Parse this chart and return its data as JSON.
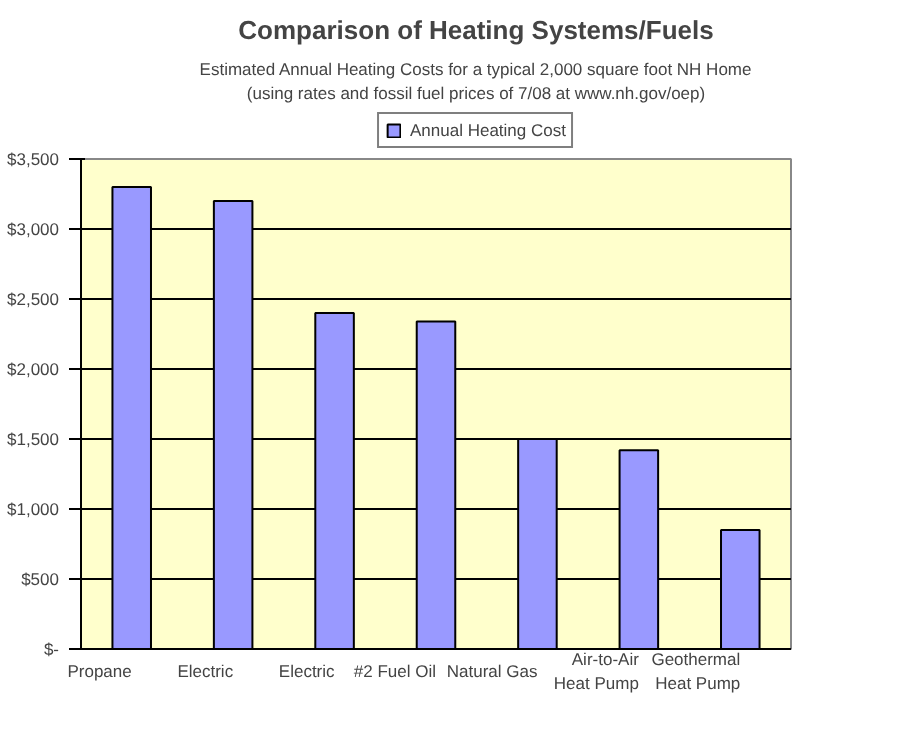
{
  "chart_data": {
    "type": "bar",
    "title": "Comparison of Heating Systems/Fuels",
    "subtitle": "Estimated Annual Heating Costs for a typical 2,000 square foot NH Home",
    "annotations": [
      "(using rates and fossil fuel prices of 7/08 at www.nh.gov/oep)"
    ],
    "categories": [
      "Propane",
      "Electric",
      "Electric",
      "#2 Fuel Oil",
      "Natural Gas",
      "Air-to-Air\nHeat Pump",
      "Geothermal\nHeat Pump"
    ],
    "series": [
      {
        "name": "Annual Heating Cost",
        "color": "#9999ff",
        "values": [
          3300,
          3200,
          2400,
          2340,
          1500,
          1420,
          850
        ]
      }
    ],
    "ylim": [
      0,
      3500
    ],
    "yticks": [
      {
        "value": 0,
        "label": "$-"
      },
      {
        "value": 500,
        "label": "$500"
      },
      {
        "value": 1000,
        "label": "$1,000"
      },
      {
        "value": 1500,
        "label": "$1,500"
      },
      {
        "value": 2000,
        "label": "$2,000"
      },
      {
        "value": 2500,
        "label": "$2,500"
      },
      {
        "value": 3000,
        "label": "$3,000"
      },
      {
        "value": 3500,
        "label": "$3,500"
      }
    ],
    "grid": "y",
    "legend": "top"
  }
}
